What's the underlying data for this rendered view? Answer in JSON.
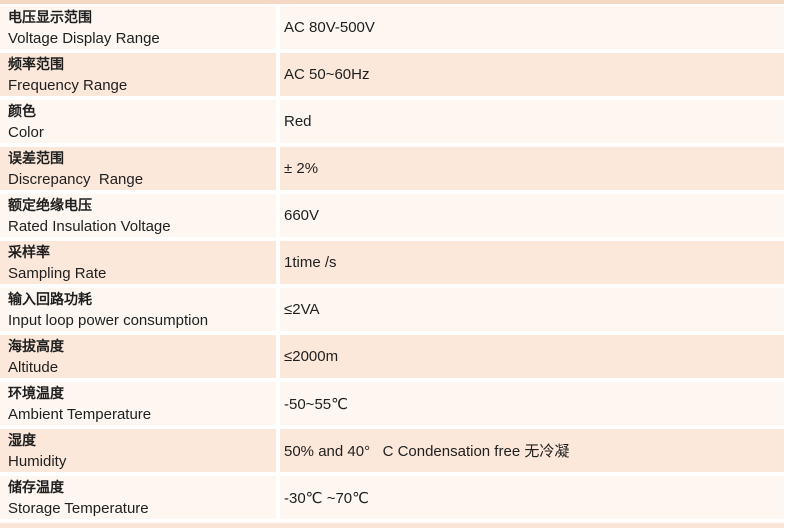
{
  "table": {
    "rows": [
      {
        "label_zh": "电压显示范围",
        "label_en": "Voltage Display Range",
        "value": "AC 80V-500V"
      },
      {
        "label_zh": "频率范围",
        "label_en": "Frequency Range",
        "value": "AC 50~60Hz"
      },
      {
        "label_zh": "颜色",
        "label_en": "Color",
        "value": "Red"
      },
      {
        "label_zh": "误差范围",
        "label_en": "Discrepancy  Range",
        "value": "± 2%"
      },
      {
        "label_zh": "额定绝缘电压",
        "label_en": "Rated Insulation Voltage",
        "value": "660V"
      },
      {
        "label_zh": "采样率",
        "label_en": "Sampling Rate",
        "value": "1time /s"
      },
      {
        "label_zh": "输入回路功耗",
        "label_en": "Input loop power consumption",
        "value": "≤2VA"
      },
      {
        "label_zh": "海拔高度",
        "label_en": "Altitude",
        "value": "≤2000m"
      },
      {
        "label_zh": "环境温度",
        "label_en": "Ambient Temperature",
        "value": "-50~55℃"
      },
      {
        "label_zh": "湿度",
        "label_en": "Humidity",
        "value": "50% and 40°   C Condensation free 无冷凝"
      },
      {
        "label_zh": "储存温度",
        "label_en": "Storage Temperature",
        "value": "-30℃ ~70℃"
      }
    ]
  },
  "colors": {
    "row-light": "#fdf6f1",
    "row-peach": "#fce8da",
    "edge-top": "#f6d9c4",
    "edge-bottom": "#fae5d6",
    "text": "#1f1f1f",
    "background": "#ffffff"
  }
}
